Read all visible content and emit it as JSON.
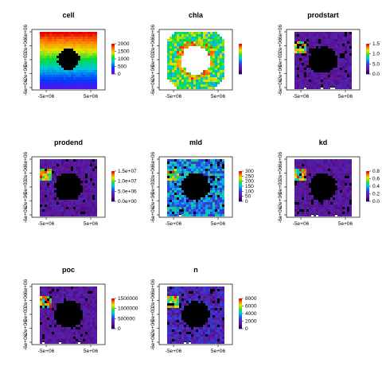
{
  "figure": {
    "background": "#ffffff",
    "frame_color": "#000000",
    "land_color": "#000000"
  },
  "palette_names": {
    "cell": "rainbow",
    "default": "purple-blue-cyan-green-yellow-red"
  },
  "chart_data": [
    {
      "type": "heatmap",
      "title": "cell",
      "x_ticks": [
        "-5e+06",
        "5e+06"
      ],
      "y_ticks": [
        "-6e+06",
        "-2e+06",
        "0e+00",
        "2e+06",
        "6e+06"
      ],
      "legend_ticks": [
        "2000",
        "1500",
        "1000",
        "500",
        "0"
      ],
      "legend_range": [
        0,
        2300
      ],
      "pattern": "gradient-rows"
    },
    {
      "type": "heatmap",
      "title": "chla",
      "x_ticks": [
        "-5e+06",
        "5e+06"
      ],
      "y_ticks": [
        "-6e+06",
        "-2e+06",
        "0e+00",
        "2e+06",
        "6e+06"
      ],
      "legend_ticks": [],
      "pattern": "ring-green"
    },
    {
      "type": "heatmap",
      "title": "prodstart",
      "x_ticks": [
        "-5e+06",
        "5e+06"
      ],
      "y_ticks": [
        "-6e+06",
        "-2e+06",
        "0e+00",
        "2e+06",
        "6e+06"
      ],
      "legend_ticks": [
        "1.5",
        "1.0",
        "5.0",
        "0.0"
      ],
      "pattern": "ring-purple"
    },
    {
      "type": "heatmap",
      "title": "prodend",
      "x_ticks": [
        "-5e+06",
        "5e+06"
      ],
      "y_ticks": [
        "-6e+06",
        "-2e+06",
        "0e+00",
        "2e+06",
        "6e+06"
      ],
      "legend_ticks": [
        "1.5e+07",
        "1.0e+07",
        "5.0e+06",
        "0.0e+00"
      ],
      "legend_range": [
        0,
        18000000
      ],
      "pattern": "ring-purple"
    },
    {
      "type": "heatmap",
      "title": "mld",
      "x_ticks": [
        "-5e+06",
        "5e+06"
      ],
      "y_ticks": [
        "-6e+06",
        "-2e+06",
        "0e+00",
        "2e+06",
        "6e+06"
      ],
      "legend_ticks": [
        "300",
        "250",
        "200",
        "150",
        "100",
        "50",
        "0"
      ],
      "legend_range": [
        0,
        320
      ],
      "pattern": "ring-blue"
    },
    {
      "type": "heatmap",
      "title": "kd",
      "x_ticks": [
        "-5e+06",
        "5e+06"
      ],
      "y_ticks": [
        "-6e+06",
        "-2e+06",
        "0e+00",
        "2e+06",
        "6e+06"
      ],
      "legend_ticks": [
        "0.8",
        "0.6",
        "0.4",
        "0.2",
        "0.0"
      ],
      "legend_range": [
        0,
        0.85
      ],
      "pattern": "ring-purple"
    },
    {
      "type": "heatmap",
      "title": "poc",
      "x_ticks": [
        "-5e+06",
        "5e+06"
      ],
      "y_ticks": [
        "-6e+06",
        "-2e+06",
        "0e+00",
        "2e+06",
        "6e+06"
      ],
      "legend_ticks": [
        "1500000",
        "1000000",
        "500000",
        "0"
      ],
      "legend_range": [
        0,
        1800000
      ],
      "pattern": "ring-purple"
    },
    {
      "type": "heatmap",
      "title": "n",
      "x_ticks": [
        "-5e+06",
        "5e+06"
      ],
      "y_ticks": [
        "-6e+06",
        "-2e+06",
        "0e+00",
        "2e+06",
        "6e+06"
      ],
      "legend_ticks": [
        "8000",
        "6000",
        "4000",
        "2000",
        "0"
      ],
      "legend_range": [
        0,
        9000
      ],
      "pattern": "ring-mixed"
    }
  ]
}
